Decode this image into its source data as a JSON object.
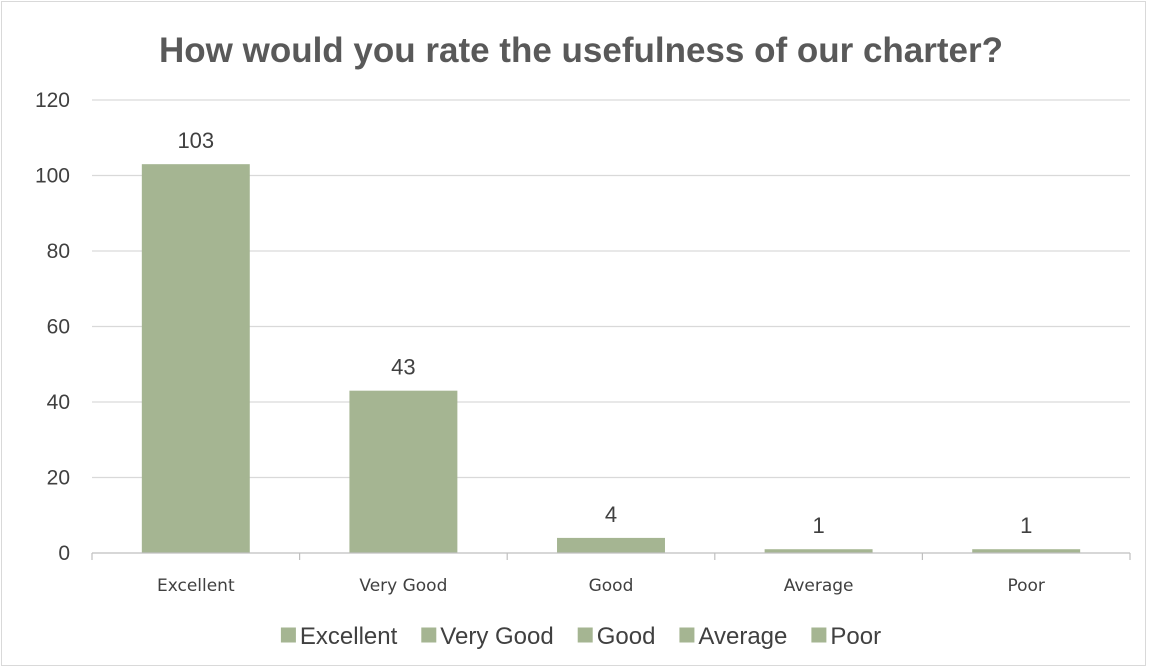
{
  "chart_data": {
    "type": "bar",
    "title": "How would you rate the usefulness of our charter?",
    "categories": [
      "Excellent",
      "Very Good",
      "Good",
      "Average",
      "Poor"
    ],
    "values": [
      103,
      43,
      4,
      1,
      1
    ],
    "data_labels": [
      "103",
      "43",
      "4",
      "1",
      "1"
    ],
    "ylim": [
      0,
      120
    ],
    "yticks": [
      0,
      20,
      40,
      60,
      80,
      100,
      120
    ],
    "ytick_labels": [
      "0",
      "20",
      "40",
      "60",
      "80",
      "100",
      "120"
    ],
    "grid": true,
    "legend": {
      "placement": "bottom",
      "entries": [
        "Excellent",
        "Very Good",
        "Good",
        "Average",
        "Poor"
      ]
    },
    "bar_color": "#a5b592",
    "gridline_color": "#d9d9d9",
    "axis_color": "#bfbfbf"
  }
}
